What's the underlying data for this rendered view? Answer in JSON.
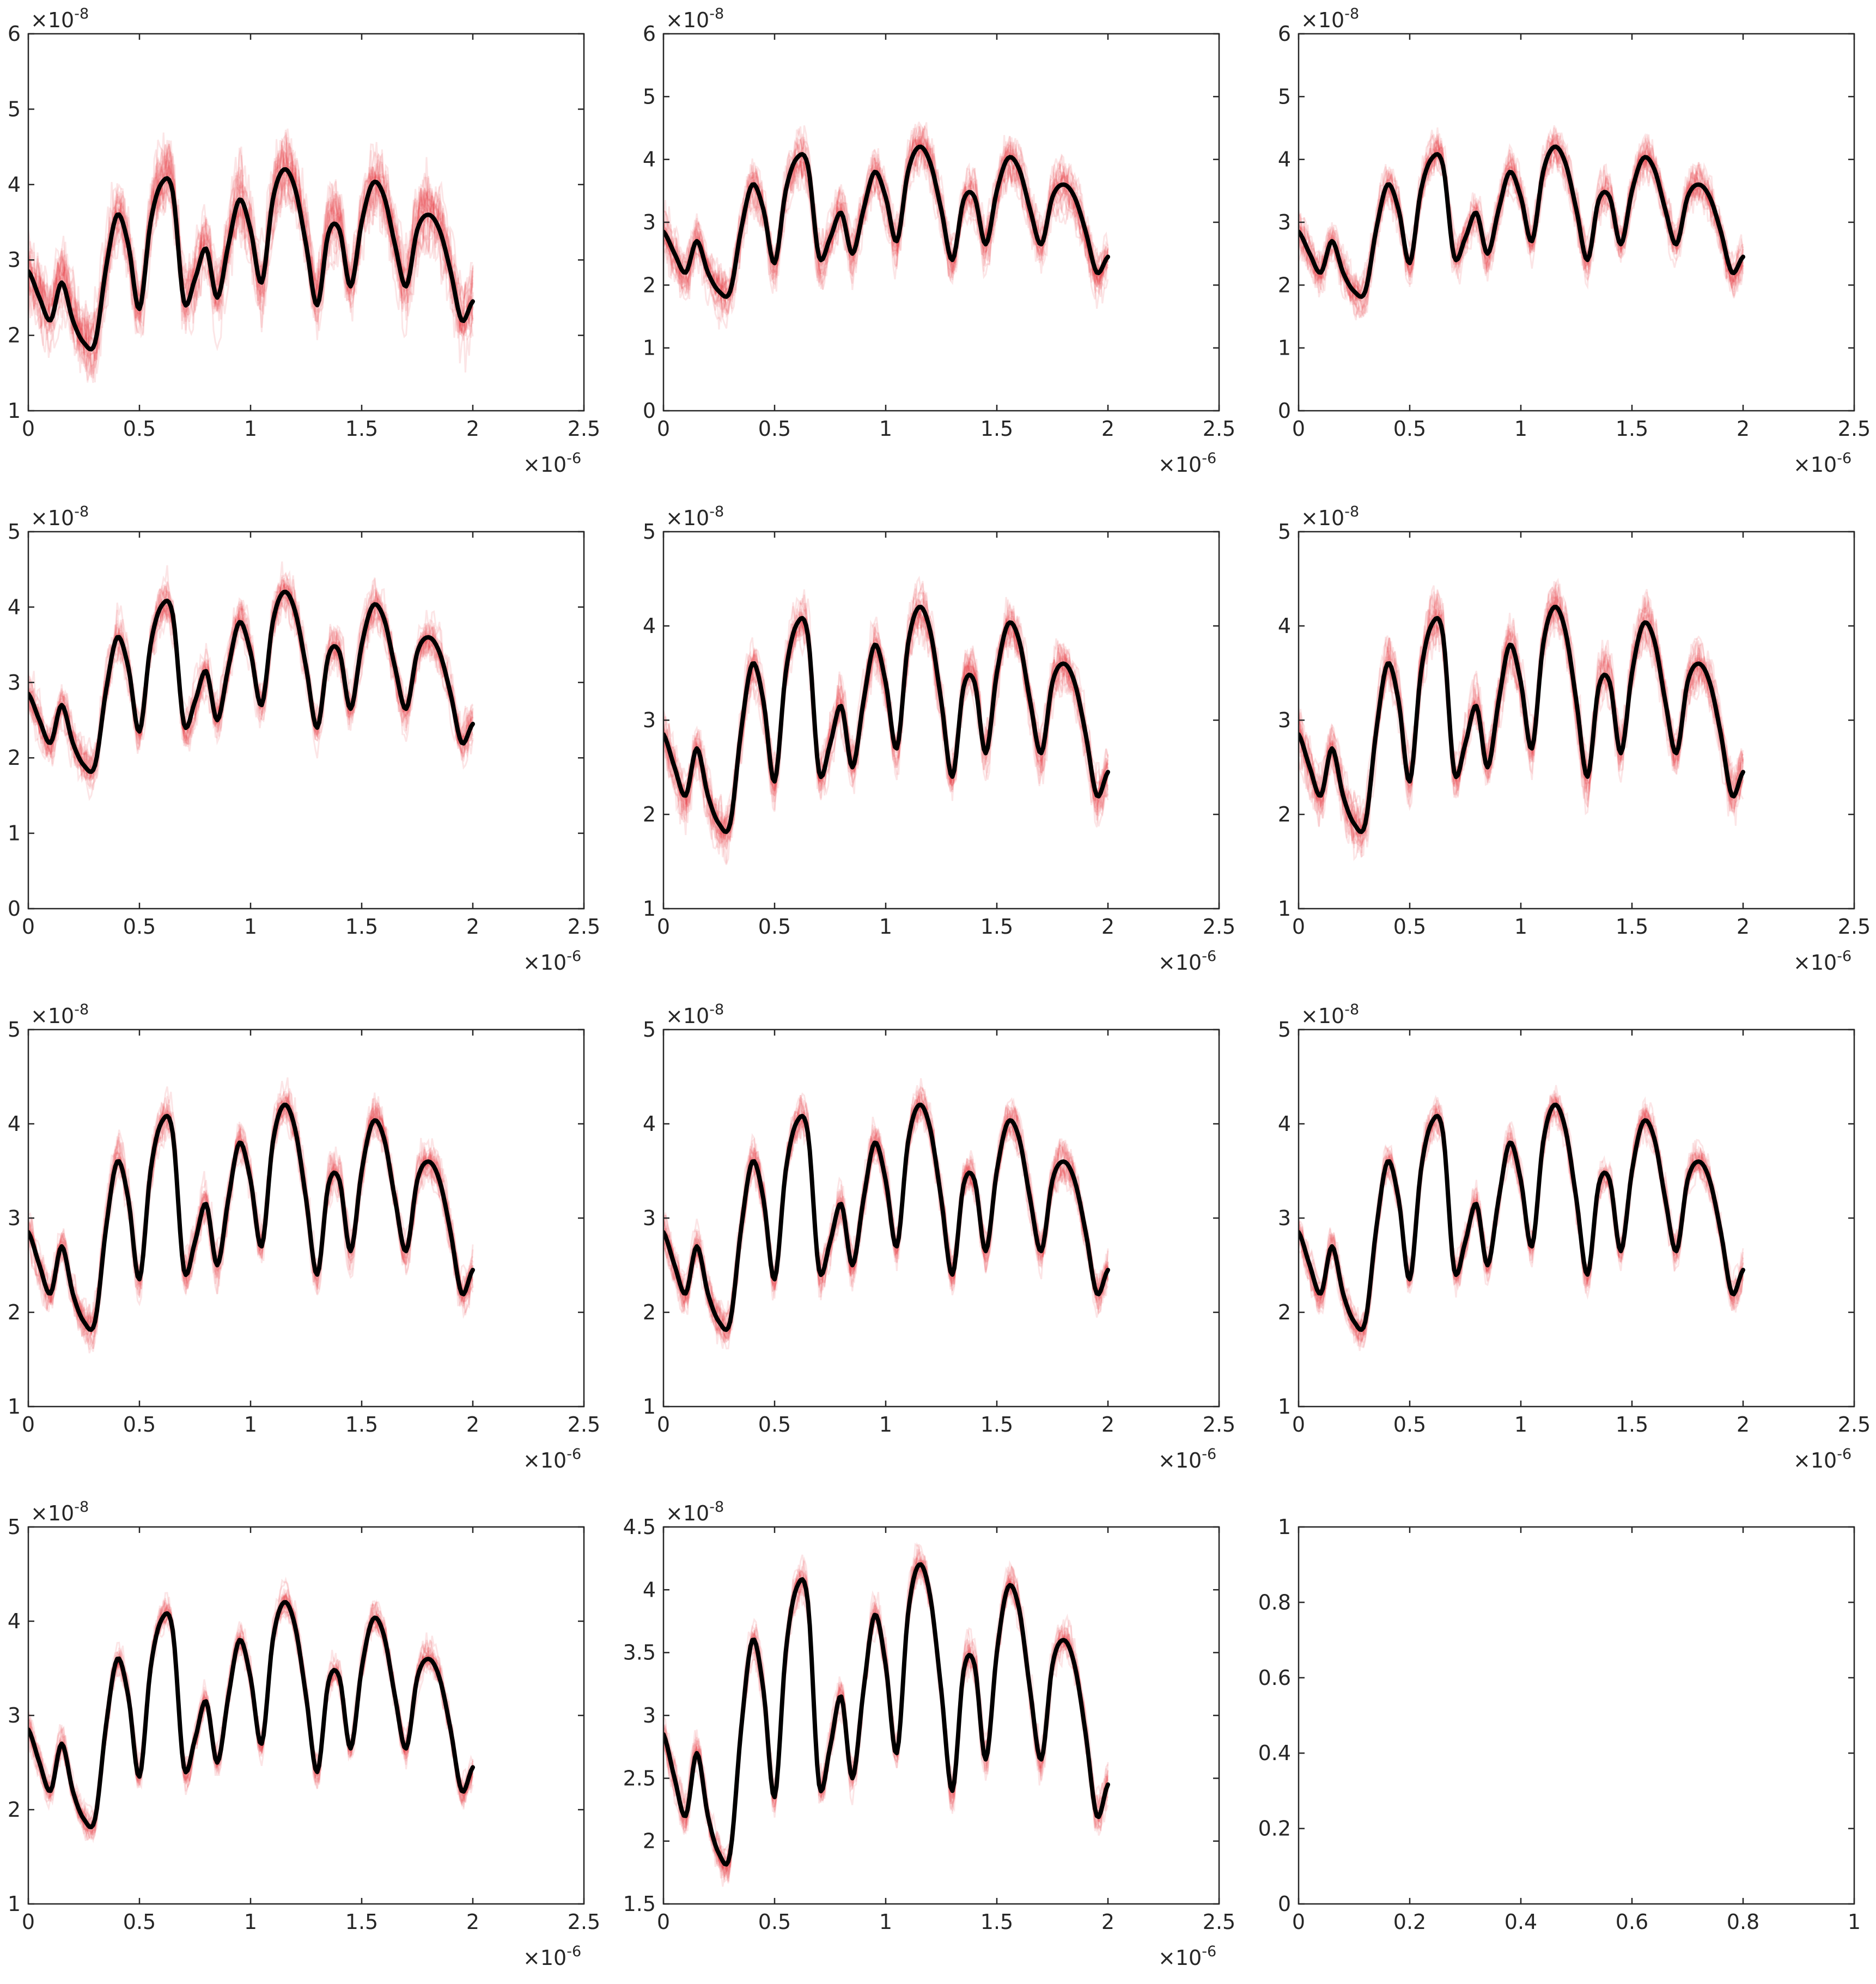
{
  "colors": {
    "mean_line": "#000000",
    "band": "#e8353b",
    "axis": "#262626",
    "background": "#ffffff"
  },
  "chart_data": [
    {
      "type": "line",
      "xlim": [
        0,
        2.5
      ],
      "ylim": [
        1,
        6
      ],
      "xticks": [
        "0",
        "0.5",
        "1",
        "1.5",
        "2",
        "2.5"
      ],
      "yticks": [
        "1",
        "2",
        "3",
        "4",
        "5",
        "6"
      ],
      "x_exponent": "-6",
      "y_exponent": "-8",
      "band_halfwidth": 0.45,
      "has_data": true
    },
    {
      "type": "line",
      "xlim": [
        0,
        2.5
      ],
      "ylim": [
        0,
        6
      ],
      "xticks": [
        "0",
        "0.5",
        "1",
        "1.5",
        "2",
        "2.5"
      ],
      "yticks": [
        "0",
        "1",
        "2",
        "3",
        "4",
        "5",
        "6"
      ],
      "x_exponent": "-6",
      "y_exponent": "-8",
      "band_halfwidth": 0.38,
      "has_data": true
    },
    {
      "type": "line",
      "xlim": [
        0,
        2.5
      ],
      "ylim": [
        0,
        6
      ],
      "xticks": [
        "0",
        "0.5",
        "1",
        "1.5",
        "2",
        "2.5"
      ],
      "yticks": [
        "0",
        "1",
        "2",
        "3",
        "4",
        "5",
        "6"
      ],
      "x_exponent": "-6",
      "y_exponent": "-8",
      "band_halfwidth": 0.34,
      "has_data": true
    },
    {
      "type": "line",
      "xlim": [
        0,
        2.5
      ],
      "ylim": [
        0,
        5
      ],
      "xticks": [
        "0",
        "0.5",
        "1",
        "1.5",
        "2",
        "2.5"
      ],
      "yticks": [
        "0",
        "1",
        "2",
        "3",
        "4",
        "5"
      ],
      "x_exponent": "-6",
      "y_exponent": "-8",
      "band_halfwidth": 0.3,
      "has_data": true
    },
    {
      "type": "line",
      "xlim": [
        0,
        2.5
      ],
      "ylim": [
        1,
        5
      ],
      "xticks": [
        "0",
        "0.5",
        "1",
        "1.5",
        "2",
        "2.5"
      ],
      "yticks": [
        "1",
        "2",
        "3",
        "4",
        "5"
      ],
      "x_exponent": "-6",
      "y_exponent": "-8",
      "band_halfwidth": 0.28,
      "has_data": true
    },
    {
      "type": "line",
      "xlim": [
        0,
        2.5
      ],
      "ylim": [
        1,
        5
      ],
      "xticks": [
        "0",
        "0.5",
        "1",
        "1.5",
        "2",
        "2.5"
      ],
      "yticks": [
        "1",
        "2",
        "3",
        "4",
        "5"
      ],
      "x_exponent": "-6",
      "y_exponent": "-8",
      "band_halfwidth": 0.26,
      "has_data": true
    },
    {
      "type": "line",
      "xlim": [
        0,
        2.5
      ],
      "ylim": [
        1,
        5
      ],
      "xticks": [
        "0",
        "0.5",
        "1",
        "1.5",
        "2",
        "2.5"
      ],
      "yticks": [
        "1",
        "2",
        "3",
        "4",
        "5"
      ],
      "x_exponent": "-6",
      "y_exponent": "-8",
      "band_halfwidth": 0.22,
      "has_data": true
    },
    {
      "type": "line",
      "xlim": [
        0,
        2.5
      ],
      "ylim": [
        1,
        5
      ],
      "xticks": [
        "0",
        "0.5",
        "1",
        "1.5",
        "2",
        "2.5"
      ],
      "yticks": [
        "1",
        "2",
        "3",
        "4",
        "5"
      ],
      "x_exponent": "-6",
      "y_exponent": "-8",
      "band_halfwidth": 0.2,
      "has_data": true
    },
    {
      "type": "line",
      "xlim": [
        0,
        2.5
      ],
      "ylim": [
        1,
        5
      ],
      "xticks": [
        "0",
        "0.5",
        "1",
        "1.5",
        "2",
        "2.5"
      ],
      "yticks": [
        "1",
        "2",
        "3",
        "4",
        "5"
      ],
      "x_exponent": "-6",
      "y_exponent": "-8",
      "band_halfwidth": 0.18,
      "has_data": true
    },
    {
      "type": "line",
      "xlim": [
        0,
        2.5
      ],
      "ylim": [
        1,
        5
      ],
      "xticks": [
        "0",
        "0.5",
        "1",
        "1.5",
        "2",
        "2.5"
      ],
      "yticks": [
        "1",
        "2",
        "3",
        "4",
        "5"
      ],
      "x_exponent": "-6",
      "y_exponent": "-8",
      "band_halfwidth": 0.17,
      "has_data": true
    },
    {
      "type": "line",
      "xlim": [
        0,
        2.5
      ],
      "ylim": [
        1.5,
        4.5
      ],
      "xticks": [
        "0",
        "0.5",
        "1",
        "1.5",
        "2",
        "2.5"
      ],
      "yticks": [
        "1.5",
        "2",
        "2.5",
        "3",
        "3.5",
        "4",
        "4.5"
      ],
      "x_exponent": "-6",
      "y_exponent": "-8",
      "band_halfwidth": 0.15,
      "has_data": true
    },
    {
      "type": "line",
      "xlim": [
        0,
        1
      ],
      "ylim": [
        0,
        1
      ],
      "xticks": [
        "0",
        "0.2",
        "0.4",
        "0.6",
        "0.8",
        "1"
      ],
      "yticks": [
        "0",
        "0.2",
        "0.4",
        "0.6",
        "0.8",
        "1"
      ],
      "x_exponent": "",
      "y_exponent": "",
      "band_halfwidth": 0,
      "has_data": false
    }
  ],
  "mean_series": {
    "x": [
      0,
      0.05,
      0.1,
      0.15,
      0.2,
      0.25,
      0.3,
      0.35,
      0.4,
      0.45,
      0.5,
      0.55,
      0.6,
      0.65,
      0.7,
      0.75,
      0.8,
      0.85,
      0.9,
      0.95,
      1.0,
      1.05,
      1.1,
      1.15,
      1.2,
      1.25,
      1.3,
      1.35,
      1.4,
      1.45,
      1.5,
      1.55,
      1.6,
      1.65,
      1.7,
      1.75,
      1.8,
      1.85,
      1.9,
      1.95,
      2.0
    ],
    "y": [
      2.85,
      2.5,
      2.2,
      2.7,
      2.2,
      1.9,
      1.9,
      2.9,
      3.6,
      3.2,
      2.35,
      3.5,
      4.02,
      3.9,
      2.45,
      2.75,
      3.15,
      2.5,
      3.2,
      3.8,
      3.4,
      2.7,
      3.8,
      4.2,
      3.95,
      3.2,
      2.4,
      3.35,
      3.4,
      2.65,
      3.5,
      4.02,
      3.85,
      3.2,
      2.65,
      3.4,
      3.6,
      3.4,
      2.85,
      2.2,
      2.45
    ]
  }
}
